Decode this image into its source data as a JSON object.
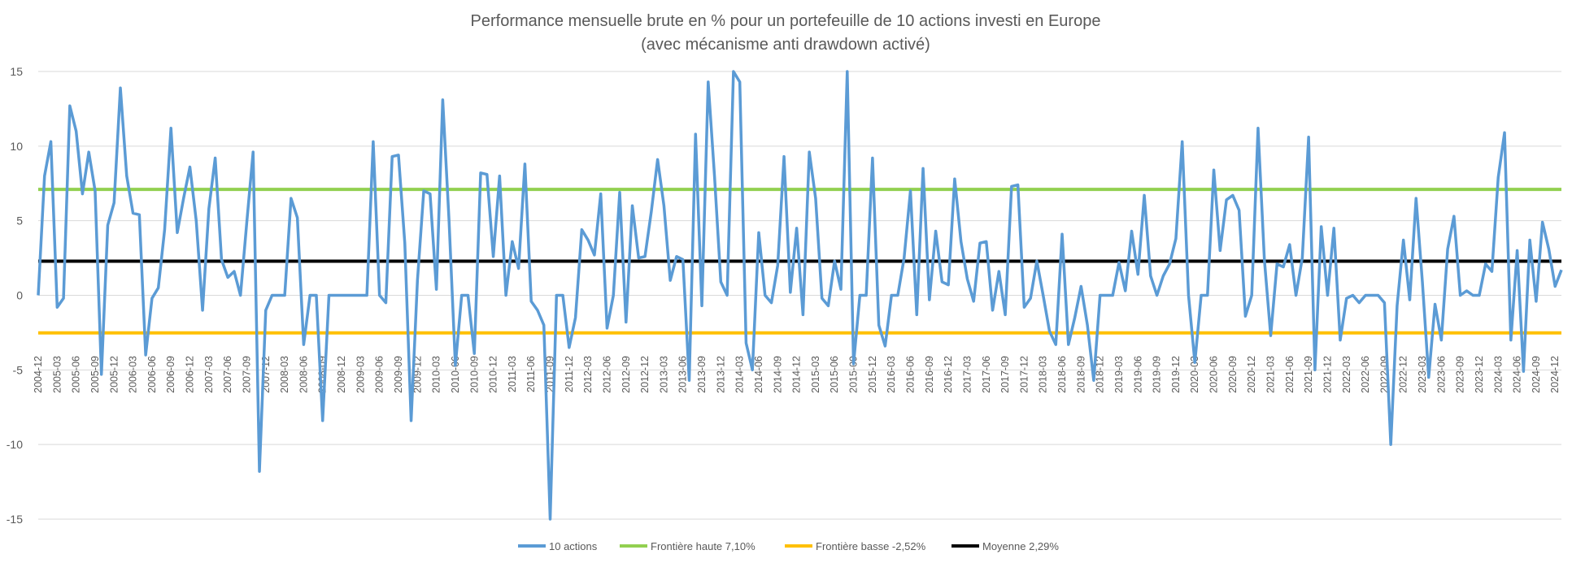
{
  "chart_data": {
    "type": "line",
    "title": [
      "Performance mensuelle brute en % pour un portefeuille de 10 actions investi en Europe",
      "(avec mécanisme anti drawdown activé)"
    ],
    "xlabel": "",
    "ylabel": "",
    "ylim": [
      -15,
      15
    ],
    "yticks": [
      15,
      10,
      5,
      0,
      -5,
      -10,
      -15
    ],
    "grid": true,
    "legend_position": "bottom",
    "x_start": "2004-12",
    "x_end": "2024-12",
    "x_tick_labels": [
      "2004-12",
      "2005-03",
      "2005-06",
      "2005-09",
      "2005-12",
      "2006-03",
      "2006-06",
      "2006-09",
      "2006-12",
      "2007-03",
      "2007-06",
      "2007-09",
      "2007-12",
      "2008-03",
      "2008-06",
      "2008-09",
      "2008-12",
      "2009-03",
      "2009-06",
      "2009-09",
      "2009-12",
      "2010-03",
      "2010-06",
      "2010-09",
      "2010-12",
      "2011-03",
      "2011-06",
      "2011-09",
      "2011-12",
      "2012-03",
      "2012-06",
      "2012-09",
      "2012-12",
      "2013-03",
      "2013-06",
      "2013-09",
      "2013-12",
      "2014-03",
      "2014-06",
      "2014-09",
      "2014-12",
      "2015-03",
      "2015-06",
      "2015-09",
      "2015-12",
      "2016-03",
      "2016-06",
      "2016-09",
      "2016-12",
      "2017-03",
      "2017-06",
      "2017-09",
      "2017-12",
      "2018-03",
      "2018-06",
      "2018-09",
      "2018-12",
      "2019-03",
      "2019-06",
      "2019-09",
      "2019-12",
      "2020-03",
      "2020-06",
      "2020-09",
      "2020-12",
      "2021-03",
      "2021-06",
      "2021-09",
      "2021-12",
      "2022-03",
      "2022-06",
      "2022-09",
      "2022-12",
      "2023-03",
      "2023-06",
      "2023-09",
      "2023-12",
      "2024-03",
      "2024-06",
      "2024-09",
      "2024-12"
    ],
    "series": [
      {
        "name": "10 actions",
        "color": "#5b9bd5",
        "values": [
          0,
          8,
          10.3,
          -0.8,
          -0.2,
          12.7,
          11,
          6.8,
          9.6,
          7,
          -5.3,
          4.7,
          6.2,
          13.9,
          8,
          5.5,
          5.4,
          -4,
          -0.2,
          0.5,
          4.4,
          11.2,
          4.2,
          6.5,
          8.6,
          5,
          -1,
          5.8,
          9.2,
          2.4,
          1.2,
          1.6,
          0,
          4.9,
          9.6,
          -11.8,
          -1,
          0,
          0,
          0,
          6.5,
          5.2,
          -3.3,
          0,
          0,
          -8.4,
          0,
          0,
          0,
          0,
          0,
          0,
          0,
          10.3,
          0,
          -0.5,
          9.3,
          9.4,
          3.5,
          -8.4,
          1,
          7,
          6.8,
          0.4,
          13.1,
          5,
          -4.7,
          0,
          0,
          -3.9,
          8.2,
          8.1,
          2.6,
          8,
          0,
          3.6,
          1.8,
          8.8,
          -0.4,
          -1,
          -2,
          -15,
          0,
          0,
          -3.5,
          -1.5,
          4.4,
          3.7,
          2.7,
          6.8,
          -2.2,
          0,
          6.9,
          -1.8,
          6,
          2.5,
          2.6,
          5.6,
          9.1,
          6,
          1,
          2.6,
          2.4,
          -5.7,
          10.8,
          -0.7,
          14.3,
          8,
          0.9,
          0,
          15,
          14.3,
          -3.2,
          -5,
          4.2,
          0,
          -0.5,
          2,
          9.3,
          0.2,
          4.5,
          -1.3,
          9.6,
          6.5,
          -0.2,
          -0.7,
          2.3,
          0.4,
          15,
          -4.6,
          0,
          0,
          9.2,
          -2,
          -3.4,
          0,
          0,
          2.5,
          7,
          -1.3,
          8.5,
          -0.3,
          4.3,
          0.9,
          0.7,
          7.8,
          3.6,
          1.1,
          -0.4,
          3.5,
          3.6,
          -1,
          1.6,
          -1.3,
          7.3,
          7.4,
          -0.8,
          -0.2,
          2.3,
          0,
          -2.4,
          -3.3,
          4.1,
          -3.3,
          -1.5,
          0.6,
          -2,
          -5.7,
          0,
          0,
          0,
          2.2,
          0.3,
          4.3,
          1.4,
          6.7,
          1.3,
          0,
          1.3,
          2.1,
          3.8,
          10.3,
          0,
          -4.5,
          0,
          0,
          8.4,
          3,
          6.4,
          6.7,
          5.7,
          -1.4,
          0,
          11.2,
          2.4,
          -2.7,
          2.1,
          1.9,
          3.4,
          0,
          2.5,
          10.6,
          -5,
          4.6,
          0,
          4.5,
          -3,
          -0.2,
          0,
          -0.5,
          0,
          0,
          0,
          -0.5,
          -10,
          -0.7,
          3.7,
          -0.3,
          6.5,
          0.9,
          -5.5,
          -0.6,
          -3,
          3.1,
          5.3,
          0,
          0.3,
          0,
          0,
          2.1,
          1.6,
          7.9,
          10.9,
          -3,
          3,
          -5.1,
          3.7,
          -0.4,
          4.9,
          3.1,
          0.6,
          1.7
        ]
      },
      {
        "name": "Frontière haute 7,10%",
        "color": "#92d050",
        "value": 7.1
      },
      {
        "name": "Frontière basse -2,52%",
        "color": "#ffc000",
        "value": -2.52
      },
      {
        "name": "Moyenne 2,29%",
        "color": "#000000",
        "value": 2.29
      }
    ]
  }
}
